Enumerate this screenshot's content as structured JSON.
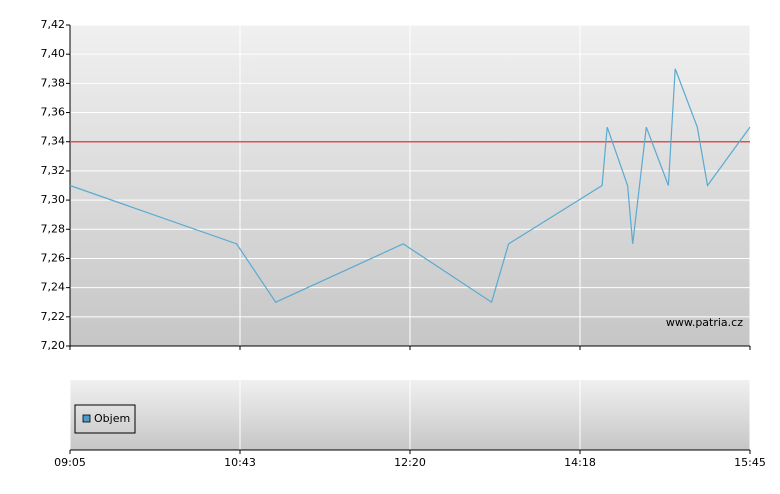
{
  "chart_data": {
    "type": "line",
    "x": [
      0,
      0.98,
      1.21,
      1.96,
      2.48,
      2.58,
      3.13,
      3.16,
      3.28,
      3.31,
      3.39,
      3.52,
      3.56,
      3.69,
      3.75,
      4
    ],
    "series": [
      {
        "color": "#5aaad2",
        "values": [
          7.31,
          7.27,
          7.23,
          7.27,
          7.23,
          7.27,
          7.31,
          7.35,
          7.31,
          7.27,
          7.35,
          7.31,
          7.39,
          7.35,
          7.31,
          7.35
        ]
      }
    ],
    "reference_line": {
      "value": 7.34,
      "color": "#e05050"
    },
    "xlim": [
      0,
      4
    ],
    "xticks": [
      {
        "value": 0,
        "label": "09:05"
      },
      {
        "value": 1,
        "label": "10:43"
      },
      {
        "value": 2,
        "label": "12:20"
      },
      {
        "value": 3,
        "label": "14:18"
      },
      {
        "value": 4,
        "label": "15:45"
      }
    ],
    "ylim": [
      7.2,
      7.42
    ],
    "yticks": [
      {
        "value": 7.2,
        "label": "7,20"
      },
      {
        "value": 7.22,
        "label": "7,22"
      },
      {
        "value": 7.24,
        "label": "7,24"
      },
      {
        "value": 7.26,
        "label": "7,26"
      },
      {
        "value": 7.28,
        "label": "7,28"
      },
      {
        "value": 7.3,
        "label": "7,30"
      },
      {
        "value": 7.32,
        "label": "7,32"
      },
      {
        "value": 7.34,
        "label": "7,34"
      },
      {
        "value": 7.36,
        "label": "7,36"
      },
      {
        "value": 7.38,
        "label": "7,38"
      },
      {
        "value": 7.4,
        "label": "7,40"
      },
      {
        "value": 7.42,
        "label": "7,42"
      }
    ],
    "grid": true,
    "watermark": "www.patria.cz",
    "volume_panel": {
      "legend": "Objem",
      "color": "#4a9ccc"
    }
  }
}
